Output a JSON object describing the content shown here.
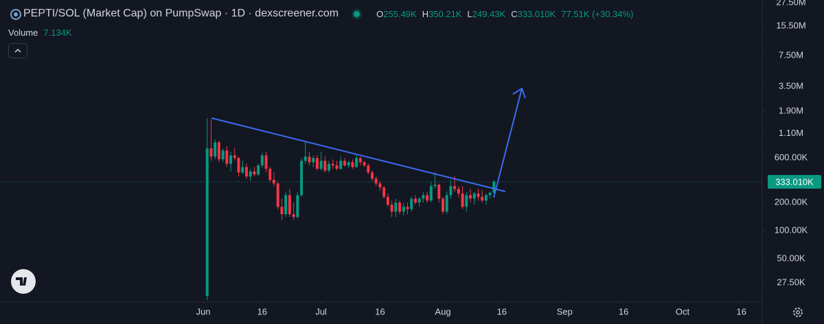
{
  "chart_data": {
    "type": "candlestick",
    "title": "PEPTI/SOL (Market Cap) on PumpSwap · 1D · dexscreener.com",
    "ohlc": [
      {
        "key": "O",
        "value": "255.49K"
      },
      {
        "key": "H",
        "value": "350.21K"
      },
      {
        "key": "L",
        "value": "249.43K"
      },
      {
        "key": "C",
        "value": "333.010K"
      }
    ],
    "change": "77.51K (+30.34%)",
    "volume_label": "Volume",
    "volume_value": "7.134K",
    "log_y": true,
    "grid": false,
    "up_color": "#089981",
    "down_color": "#f23645",
    "ylim": [
      17.2,
      29500
    ],
    "yticks": [
      {
        "value": 27500,
        "label": "27.50M"
      },
      {
        "value": 15500,
        "label": "15.50M"
      },
      {
        "value": 7500,
        "label": "7.50M"
      },
      {
        "value": 3500,
        "label": "3.50M"
      },
      {
        "value": 1900,
        "label": "1.90M"
      },
      {
        "value": 1100,
        "label": "1.10M"
      },
      {
        "value": 600,
        "label": "600.00K"
      },
      {
        "value": 200,
        "label": "200.00K"
      },
      {
        "value": 100,
        "label": "100.00K"
      },
      {
        "value": 50,
        "label": "50.00K"
      },
      {
        "value": 27.5,
        "label": "27.50K"
      }
    ],
    "last_price": {
      "value": 333.01,
      "label": "333.010K"
    },
    "xlim": [
      -51.74,
      142.28
    ],
    "xticks": [
      {
        "value": 0,
        "label": "Jun"
      },
      {
        "value": 15,
        "label": "16"
      },
      {
        "value": 30,
        "label": "Jul"
      },
      {
        "value": 45,
        "label": "16"
      },
      {
        "value": 61,
        "label": "Aug"
      },
      {
        "value": 76,
        "label": "16"
      },
      {
        "value": 92,
        "label": "Sep"
      },
      {
        "value": 107,
        "label": "16"
      },
      {
        "value": 122,
        "label": "Oct"
      },
      {
        "value": 137,
        "label": "16"
      }
    ],
    "x": [
      1,
      2,
      3,
      4,
      5,
      6,
      7,
      8,
      9,
      10,
      11,
      12,
      13,
      14,
      15,
      16,
      17,
      18,
      19,
      20,
      21,
      22,
      23,
      24,
      25,
      26,
      27,
      28,
      29,
      30,
      31,
      32,
      33,
      34,
      35,
      36,
      37,
      38,
      39,
      40,
      41,
      42,
      43,
      44,
      45,
      46,
      47,
      48,
      49,
      50,
      51,
      52,
      53,
      54,
      55,
      56,
      57,
      58,
      59,
      60,
      61,
      62,
      63,
      64,
      65,
      66,
      67,
      68,
      69,
      70,
      71,
      72,
      73,
      74
    ],
    "open": [
      20,
      760,
      620,
      880,
      580,
      720,
      520,
      640,
      600,
      420,
      480,
      380,
      430,
      400,
      500,
      640,
      460,
      350,
      320,
      180,
      150,
      240,
      150,
      140,
      240,
      560,
      620,
      540,
      600,
      460,
      560,
      440,
      520,
      500,
      460,
      560,
      500,
      540,
      480,
      600,
      540,
      500,
      420,
      360,
      320,
      290,
      230,
      190,
      160,
      200,
      160,
      180,
      170,
      220,
      200,
      220,
      240,
      210,
      300,
      310,
      220,
      160,
      240,
      300,
      280,
      250,
      180,
      240,
      220,
      250,
      230,
      210,
      240,
      255.49
    ],
    "high": [
      1600,
      1550,
      950,
      920,
      760,
      800,
      700,
      760,
      620,
      560,
      520,
      460,
      480,
      520,
      680,
      700,
      480,
      420,
      340,
      220,
      260,
      280,
      200,
      260,
      600,
      900,
      700,
      640,
      650,
      700,
      620,
      560,
      580,
      560,
      620,
      600,
      560,
      580,
      640,
      620,
      560,
      520,
      440,
      380,
      340,
      300,
      250,
      210,
      220,
      210,
      200,
      200,
      230,
      240,
      230,
      260,
      260,
      330,
      420,
      320,
      230,
      260,
      350,
      380,
      300,
      300,
      260,
      280,
      260,
      280,
      270,
      250,
      260,
      350.21
    ],
    "low": [
      18,
      560,
      580,
      540,
      540,
      480,
      430,
      560,
      380,
      400,
      360,
      340,
      380,
      380,
      470,
      420,
      330,
      300,
      170,
      130,
      140,
      140,
      130,
      135,
      230,
      520,
      500,
      480,
      440,
      440,
      420,
      420,
      460,
      440,
      450,
      480,
      470,
      460,
      470,
      500,
      480,
      400,
      340,
      300,
      270,
      220,
      180,
      140,
      140,
      150,
      145,
      150,
      160,
      190,
      180,
      200,
      200,
      200,
      280,
      200,
      150,
      150,
      220,
      260,
      230,
      170,
      160,
      200,
      190,
      210,
      200,
      190,
      220,
      249.43
    ],
    "close": [
      760,
      620,
      880,
      580,
      720,
      520,
      640,
      600,
      420,
      480,
      380,
      430,
      400,
      500,
      640,
      460,
      350,
      320,
      180,
      150,
      240,
      150,
      140,
      240,
      560,
      620,
      540,
      600,
      460,
      560,
      440,
      520,
      500,
      460,
      560,
      500,
      540,
      480,
      600,
      540,
      500,
      420,
      360,
      320,
      290,
      230,
      190,
      160,
      200,
      160,
      180,
      170,
      220,
      200,
      220,
      240,
      210,
      300,
      310,
      220,
      160,
      240,
      300,
      280,
      250,
      180,
      240,
      220,
      250,
      230,
      210,
      240,
      255,
      333.01
    ]
  }
}
